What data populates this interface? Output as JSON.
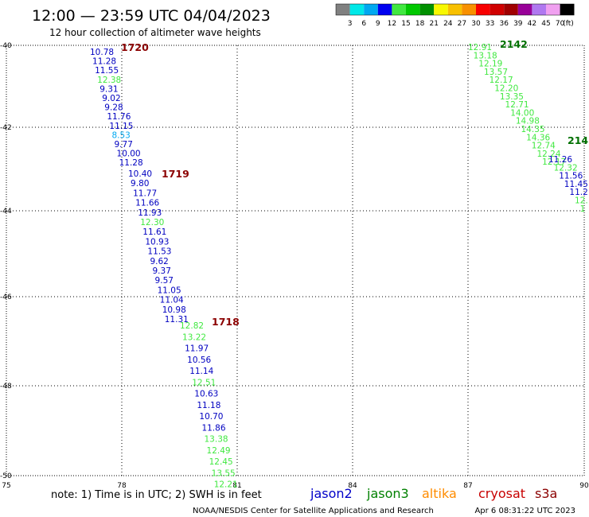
{
  "header": {
    "title": "12:00 — 23:59 UTC 04/04/2023",
    "subtitle": "12 hour collection of altimeter wave heights"
  },
  "colorbar": {
    "colors": [
      "#808080",
      "#00e8e8",
      "#00a8f0",
      "#0000f0",
      "#40e840",
      "#00c800",
      "#009000",
      "#f8f800",
      "#f8c000",
      "#f89000",
      "#f80000",
      "#d00000",
      "#a00000",
      "#980098",
      "#b078f0",
      "#f0a0f0",
      "#000000"
    ],
    "labels": [
      "3",
      "6",
      "9",
      "12",
      "15",
      "18",
      "21",
      "24",
      "27",
      "30",
      "33",
      "36",
      "39",
      "42",
      "45",
      "70"
    ],
    "unit": "(ft)"
  },
  "axes": {
    "x_ticks": [
      "75",
      "78",
      "81",
      "84",
      "87",
      "90"
    ],
    "y_ticks": [
      "-40",
      "-42",
      "-44",
      "-46",
      "-48",
      "-50"
    ]
  },
  "tracks": [
    {
      "satellite": "cryosat",
      "pass_label": "1720",
      "label_color": "#8b0000",
      "points": [
        {
          "value": "10.78",
          "color": "#0000c0"
        },
        {
          "value": "11.28",
          "color": "#0000c0"
        },
        {
          "value": "11.55",
          "color": "#0000c0"
        },
        {
          "value": "12.38",
          "color": "#40e840"
        },
        {
          "value": "9.31",
          "color": "#0000c0"
        },
        {
          "value": "9.02",
          "color": "#0000c0"
        },
        {
          "value": "9.28",
          "color": "#0000c0"
        },
        {
          "value": "11.76",
          "color": "#0000c0"
        },
        {
          "value": "11.15",
          "color": "#0000c0"
        },
        {
          "value": "8.53",
          "color": "#00a8f0"
        },
        {
          "value": "9.77",
          "color": "#0000c0"
        },
        {
          "value": "10.00",
          "color": "#0000c0"
        },
        {
          "value": "11.28",
          "color": "#0000c0"
        }
      ]
    },
    {
      "satellite": "cryosat",
      "pass_label": "1719",
      "label_color": "#8b0000",
      "points": [
        {
          "value": "10.40",
          "color": "#0000c0"
        },
        {
          "value": "9.80",
          "color": "#0000c0"
        },
        {
          "value": "11.77",
          "color": "#0000c0"
        },
        {
          "value": "11.66",
          "color": "#0000c0"
        },
        {
          "value": "11.93",
          "color": "#0000c0"
        },
        {
          "value": "12.30",
          "color": "#40e840"
        },
        {
          "value": "11.61",
          "color": "#0000c0"
        },
        {
          "value": "10.93",
          "color": "#0000c0"
        },
        {
          "value": "11.53",
          "color": "#0000c0"
        },
        {
          "value": "9.62",
          "color": "#0000c0"
        },
        {
          "value": "9.37",
          "color": "#0000c0"
        },
        {
          "value": "9.57",
          "color": "#0000c0"
        },
        {
          "value": "11.05",
          "color": "#0000c0"
        },
        {
          "value": "11.04",
          "color": "#0000c0"
        },
        {
          "value": "10.98",
          "color": "#0000c0"
        },
        {
          "value": "11.31",
          "color": "#0000c0"
        }
      ]
    },
    {
      "satellite": "cryosat",
      "pass_label": "1718",
      "label_color": "#8b0000",
      "points": [
        {
          "value": "12.82",
          "color": "#40e840"
        },
        {
          "value": "13.22",
          "color": "#40e840"
        },
        {
          "value": "11.97",
          "color": "#0000c0"
        },
        {
          "value": "10.56",
          "color": "#0000c0"
        },
        {
          "value": "11.14",
          "color": "#0000c0"
        },
        {
          "value": "12.51",
          "color": "#40e840"
        },
        {
          "value": "10.63",
          "color": "#0000c0"
        },
        {
          "value": "11.18",
          "color": "#0000c0"
        },
        {
          "value": "10.70",
          "color": "#0000c0"
        },
        {
          "value": "11.86",
          "color": "#0000c0"
        },
        {
          "value": "13.38",
          "color": "#40e840"
        },
        {
          "value": "12.49",
          "color": "#40e840"
        },
        {
          "value": "12.45",
          "color": "#40e840"
        },
        {
          "value": "13.55",
          "color": "#40e840"
        },
        {
          "value": "12.21",
          "color": "#40e840"
        }
      ]
    },
    {
      "satellite": "jason3",
      "pass_label": "2142",
      "label_color": "#007000",
      "points": [
        {
          "value": "12.91",
          "color": "#40e840"
        },
        {
          "value": "13.18",
          "color": "#40e840"
        },
        {
          "value": "12.19",
          "color": "#40e840"
        },
        {
          "value": "13.57",
          "color": "#40e840"
        },
        {
          "value": "12.17",
          "color": "#40e840"
        },
        {
          "value": "12.20",
          "color": "#40e840"
        },
        {
          "value": "13.35",
          "color": "#40e840"
        },
        {
          "value": "12.71",
          "color": "#40e840"
        },
        {
          "value": "14.00",
          "color": "#40e840"
        },
        {
          "value": "14.98",
          "color": "#40e840"
        },
        {
          "value": "14.35",
          "color": "#40e840"
        },
        {
          "value": "14.36",
          "color": "#40e840"
        },
        {
          "value": "12.74",
          "color": "#40e840"
        },
        {
          "value": "12.24",
          "color": "#40e840"
        },
        {
          "value": "12.17",
          "color": "#40e840"
        }
      ]
    },
    {
      "satellite": "jason3",
      "pass_label": "214",
      "label_color": "#007000",
      "points": [
        {
          "value": "11.26",
          "color": "#0000c0"
        },
        {
          "value": "12.32",
          "color": "#40e840"
        },
        {
          "value": "11.56",
          "color": "#0000c0"
        },
        {
          "value": "11.45",
          "color": "#0000c0"
        },
        {
          "value": "11.2",
          "color": "#0000c0"
        },
        {
          "value": "12.",
          "color": "#40e840"
        },
        {
          "value": "1",
          "color": "#40e840"
        }
      ]
    }
  ],
  "footer": {
    "note": "note:  1) Time is in UTC;  2) SWH is in feet",
    "legend": [
      {
        "name": "jason2",
        "color": "#0000c8"
      },
      {
        "name": "jason3",
        "color": "#008000"
      },
      {
        "name": "altika",
        "color": "#ff8c00"
      },
      {
        "name": "cryosat",
        "color": "#c80000"
      },
      {
        "name": "s3a",
        "color": "#8b0000"
      }
    ],
    "credit": "NOAA/NESDIS Center for Satellite Applications and Research",
    "timestamp": "Apr  6 08:31:22 UTC 2023"
  }
}
